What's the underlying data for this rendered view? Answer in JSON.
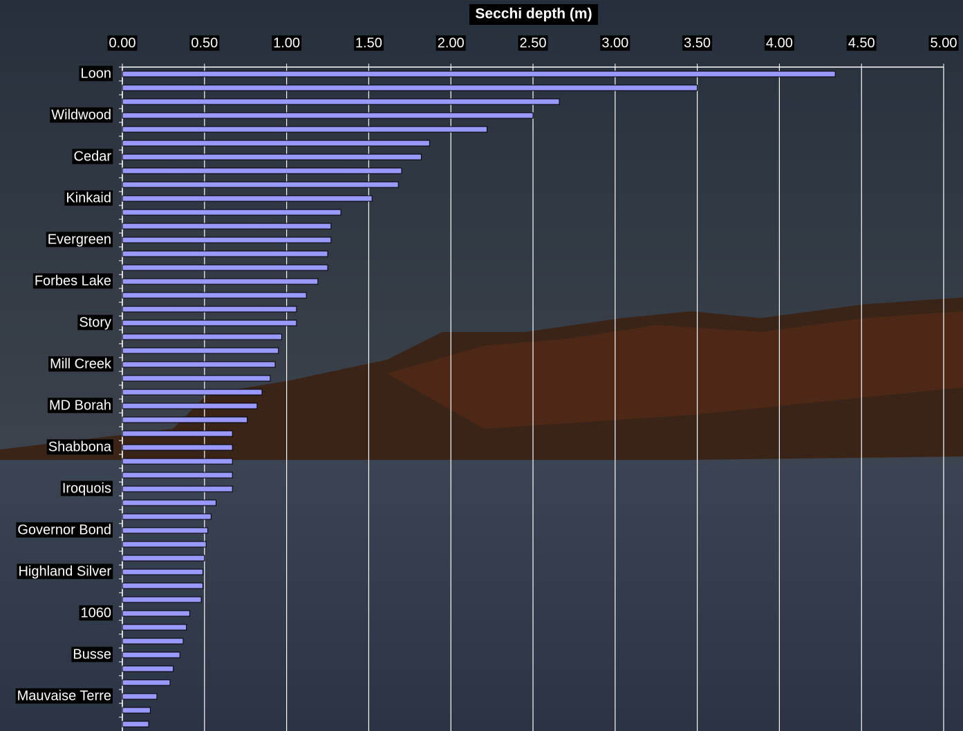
{
  "chart_data": {
    "type": "bar",
    "orientation": "horizontal",
    "title": "Secchi depth (m)",
    "categories": [
      "Loon",
      null,
      null,
      "Wildwood",
      null,
      null,
      "Cedar",
      null,
      null,
      "Kinkaid",
      null,
      null,
      "Evergreen",
      null,
      null,
      "Forbes Lake",
      null,
      null,
      "Story",
      null,
      null,
      "Mill Creek",
      null,
      null,
      "MD Borah",
      null,
      null,
      "Shabbona",
      null,
      null,
      "Iroquois",
      null,
      null,
      "Governor Bond",
      null,
      null,
      "Highland Silver",
      null,
      null,
      "1060",
      null,
      null,
      "Busse",
      null,
      null,
      "Mauvaise Terre",
      null,
      null
    ],
    "values": [
      4.34,
      3.5,
      2.66,
      2.5,
      2.22,
      1.87,
      1.82,
      1.7,
      1.68,
      1.52,
      1.33,
      1.27,
      1.27,
      1.25,
      1.25,
      1.19,
      1.12,
      1.06,
      1.06,
      0.97,
      0.95,
      0.93,
      0.9,
      0.85,
      0.82,
      0.76,
      0.67,
      0.67,
      0.67,
      0.67,
      0.67,
      0.57,
      0.54,
      0.52,
      0.51,
      0.5,
      0.49,
      0.49,
      0.48,
      0.41,
      0.39,
      0.37,
      0.35,
      0.31,
      0.29,
      0.21,
      0.17,
      0.16
    ],
    "color": "#9999ff",
    "xlim": [
      0,
      5
    ],
    "xticks": [
      {
        "value": 0,
        "label": "0.00"
      },
      {
        "value": 0.5,
        "label": "0.50"
      },
      {
        "value": 1,
        "label": "1.00"
      },
      {
        "value": 1.5,
        "label": "1.50"
      },
      {
        "value": 2,
        "label": "2.00"
      },
      {
        "value": 2.5,
        "label": "2.50"
      },
      {
        "value": 3,
        "label": "3.00"
      },
      {
        "value": 3.5,
        "label": "3.50"
      },
      {
        "value": 4,
        "label": "4.00"
      },
      {
        "value": 4.5,
        "label": "4.50"
      },
      {
        "value": 5,
        "label": "5.00"
      }
    ],
    "grid": true
  }
}
